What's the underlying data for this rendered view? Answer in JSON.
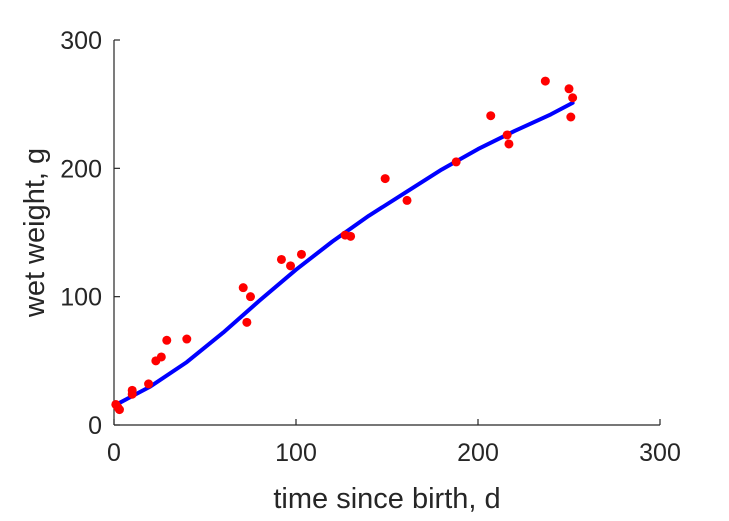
{
  "chart_data": {
    "type": "scatter",
    "title": "",
    "xlabel": "time since birth, d",
    "ylabel": "wet weight, g",
    "xlim": [
      0,
      300
    ],
    "ylim": [
      0,
      300
    ],
    "xticks": [
      0,
      100,
      200,
      300
    ],
    "yticks": [
      0,
      100,
      200,
      300
    ],
    "x_tick_labels": [
      "0",
      "100",
      "200",
      "300"
    ],
    "y_tick_labels": [
      "0",
      "100",
      "200",
      "300"
    ],
    "grid": false,
    "legend": "none",
    "series": [
      {
        "kind": "scatter",
        "color": "#ff0000",
        "points": [
          [
            1,
            16
          ],
          [
            2,
            14
          ],
          [
            3,
            12
          ],
          [
            10,
            27
          ],
          [
            10,
            24
          ],
          [
            19,
            32
          ],
          [
            23,
            50
          ],
          [
            26,
            53
          ],
          [
            29,
            66
          ],
          [
            40,
            67
          ],
          [
            71,
            107
          ],
          [
            73,
            80
          ],
          [
            75,
            100
          ],
          [
            92,
            129
          ],
          [
            97,
            124
          ],
          [
            103,
            133
          ],
          [
            127,
            148
          ],
          [
            130,
            147
          ],
          [
            149,
            192
          ],
          [
            161,
            175
          ],
          [
            188,
            205
          ],
          [
            207,
            241
          ],
          [
            216,
            226
          ],
          [
            217,
            219
          ],
          [
            237,
            268
          ],
          [
            250,
            262
          ],
          [
            251,
            240
          ],
          [
            252,
            255
          ]
        ]
      },
      {
        "kind": "line",
        "color": "#0000ff",
        "points": [
          [
            0,
            15
          ],
          [
            20,
            30
          ],
          [
            40,
            49
          ],
          [
            60,
            72
          ],
          [
            80,
            97
          ],
          [
            100,
            121
          ],
          [
            120,
            143
          ],
          [
            140,
            163
          ],
          [
            160,
            181
          ],
          [
            180,
            199
          ],
          [
            200,
            215
          ],
          [
            220,
            229
          ],
          [
            240,
            242
          ],
          [
            252,
            251
          ]
        ]
      }
    ]
  }
}
